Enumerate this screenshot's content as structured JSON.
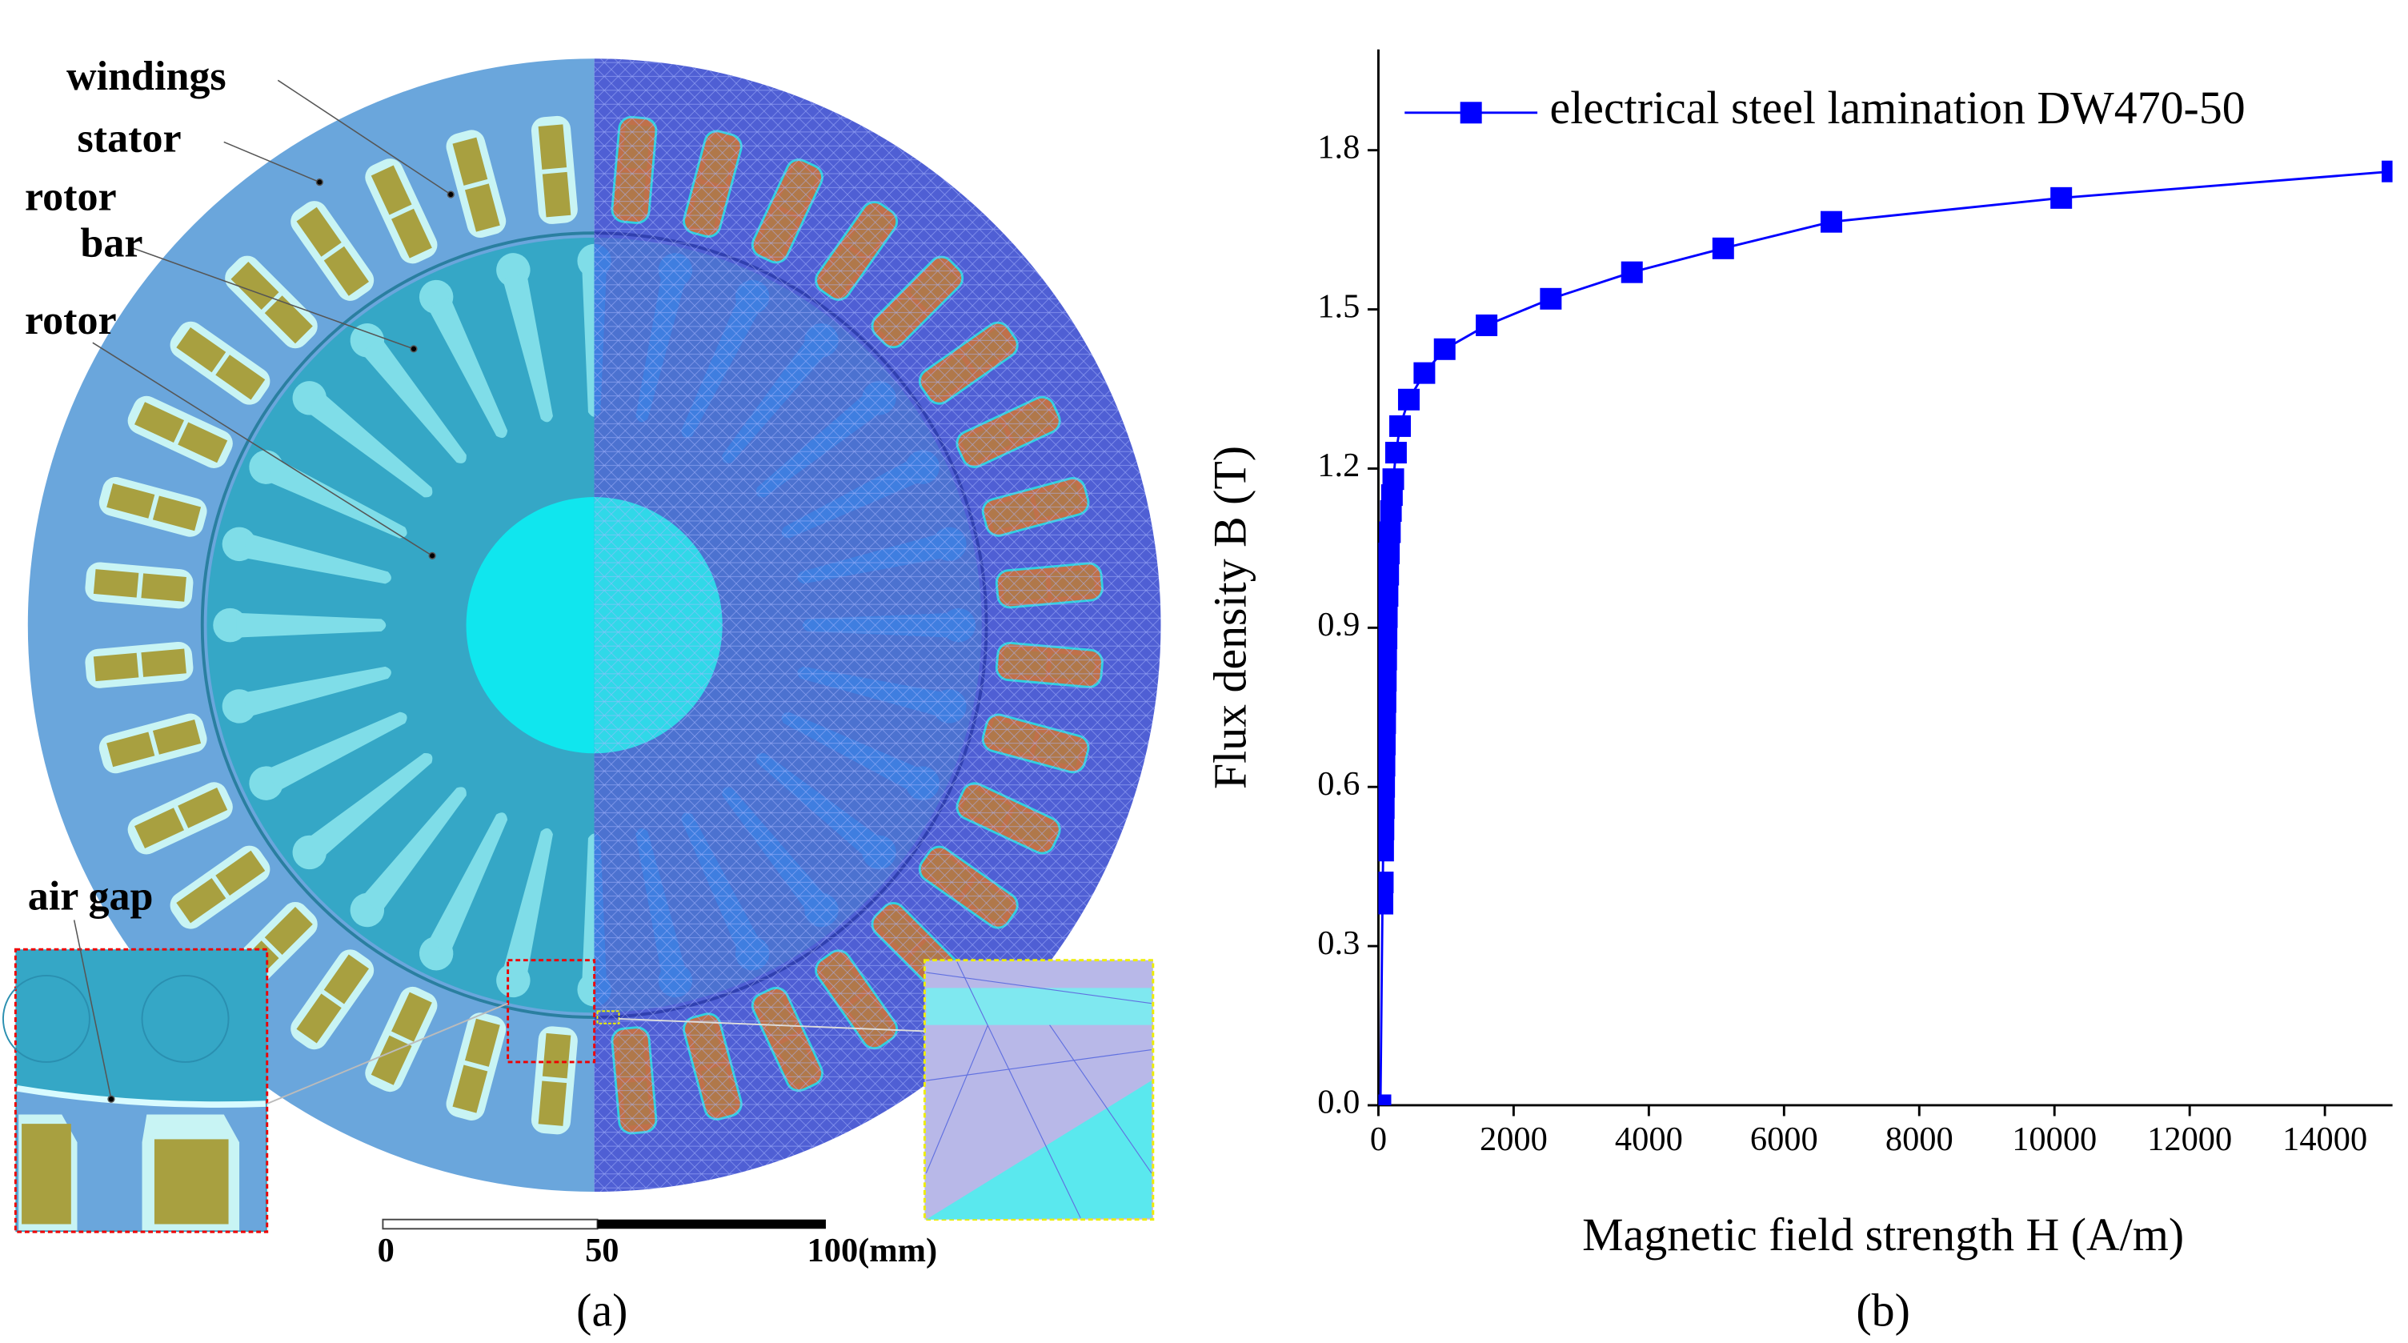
{
  "diagram": {
    "labels": [
      "windings",
      "stator",
      "rotor bar",
      "rotor",
      "air gap"
    ],
    "scale": [
      "0",
      "50",
      "100(mm)"
    ],
    "caption": "(a)"
  },
  "chart_data": {
    "type": "line",
    "caption": "(b)",
    "xlabel": "Magnetic field strength H (A/m)",
    "ylabel": "Flux density B (T)",
    "x": [
      30,
      60,
      65,
      70,
      75,
      80,
      85,
      90,
      95,
      100,
      105,
      110,
      115,
      120,
      125,
      135,
      145,
      155,
      170,
      185,
      200,
      220,
      260,
      320,
      450,
      680,
      980,
      1600,
      2550,
      3750,
      5100,
      6700,
      10100,
      15000
    ],
    "series": [
      {
        "name": "electrical steel lamination DW470-50",
        "color": "#0000ff",
        "values": [
          0.0,
          0.38,
          0.42,
          0.48,
          0.52,
          0.56,
          0.6,
          0.64,
          0.68,
          0.72,
          0.76,
          0.8,
          0.84,
          0.88,
          0.92,
          0.96,
          1.0,
          1.04,
          1.08,
          1.12,
          1.15,
          1.18,
          1.23,
          1.28,
          1.33,
          1.38,
          1.425,
          1.47,
          1.52,
          1.57,
          1.615,
          1.665,
          1.71,
          1.76
        ]
      }
    ],
    "xlim": [
      0,
      15000
    ],
    "ylim": [
      0,
      1.99
    ],
    "xticks": [
      0,
      2000,
      4000,
      6000,
      8000,
      10000,
      12000,
      14000
    ],
    "yticks": [
      {
        "value": 0,
        "label": "0.0"
      },
      0.3,
      0.6,
      0.9,
      1.2,
      1.5,
      1.8
    ],
    "legend": "upper left"
  }
}
